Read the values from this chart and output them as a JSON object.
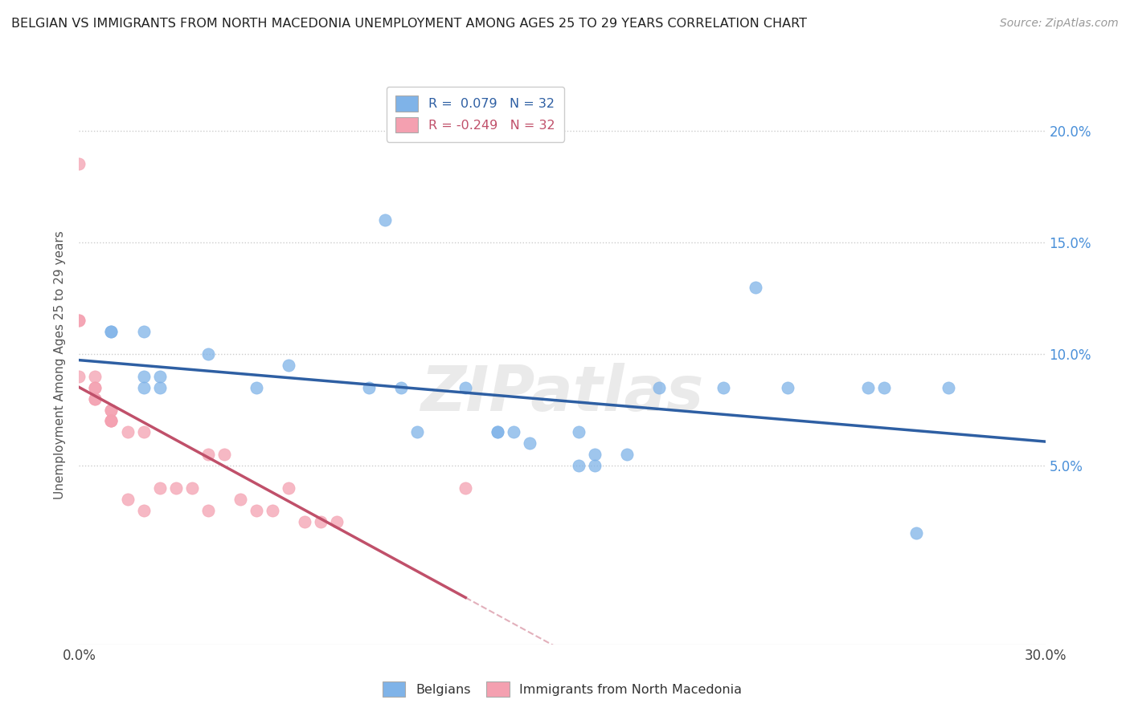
{
  "title": "BELGIAN VS IMMIGRANTS FROM NORTH MACEDONIA UNEMPLOYMENT AMONG AGES 25 TO 29 YEARS CORRELATION CHART",
  "source": "Source: ZipAtlas.com",
  "ylabel": "Unemployment Among Ages 25 to 29 years",
  "xlim": [
    0.0,
    0.3
  ],
  "ylim": [
    -0.03,
    0.22
  ],
  "yticks": [
    0.05,
    0.1,
    0.15,
    0.2
  ],
  "xticks": [
    0.0,
    0.05,
    0.1,
    0.15,
    0.2,
    0.25,
    0.3
  ],
  "xtick_labels": [
    "0.0%",
    "",
    "",
    "",
    "",
    "",
    "30.0%"
  ],
  "right_ytick_labels": [
    "5.0%",
    "10.0%",
    "15.0%",
    "20.0%"
  ],
  "belgian_color": "#7fb3e8",
  "macedonian_color": "#f4a0b0",
  "belgian_R": "0.079",
  "belgian_N": "32",
  "macedonian_R": "-0.249",
  "macedonian_N": "32",
  "legend_label_belgian": "Belgians",
  "legend_label_macedonian": "Immigrants from North Macedonia",
  "belgians_x": [
    0.01,
    0.01,
    0.02,
    0.02,
    0.02,
    0.025,
    0.025,
    0.04,
    0.055,
    0.065,
    0.09,
    0.095,
    0.1,
    0.105,
    0.12,
    0.13,
    0.14,
    0.155,
    0.16,
    0.18,
    0.2,
    0.21,
    0.22,
    0.245,
    0.25,
    0.26,
    0.27,
    0.155,
    0.16,
    0.17,
    0.13,
    0.135
  ],
  "belgians_y": [
    0.11,
    0.11,
    0.11,
    0.09,
    0.085,
    0.09,
    0.085,
    0.1,
    0.085,
    0.095,
    0.085,
    0.16,
    0.085,
    0.065,
    0.085,
    0.065,
    0.06,
    0.05,
    0.05,
    0.085,
    0.085,
    0.13,
    0.085,
    0.085,
    0.085,
    0.02,
    0.085,
    0.065,
    0.055,
    0.055,
    0.065,
    0.065
  ],
  "macedonians_x": [
    0.005,
    0.005,
    0.005,
    0.005,
    0.005,
    0.01,
    0.01,
    0.01,
    0.01,
    0.01,
    0.015,
    0.015,
    0.02,
    0.02,
    0.025,
    0.03,
    0.04,
    0.04,
    0.05,
    0.055,
    0.06,
    0.065,
    0.07,
    0.075,
    0.08,
    0.0,
    0.0,
    0.0,
    0.0,
    0.12,
    0.045,
    0.035
  ],
  "macedonians_y": [
    0.09,
    0.085,
    0.085,
    0.08,
    0.08,
    0.075,
    0.075,
    0.07,
    0.07,
    0.07,
    0.065,
    0.035,
    0.065,
    0.03,
    0.04,
    0.04,
    0.055,
    0.03,
    0.035,
    0.03,
    0.03,
    0.04,
    0.025,
    0.025,
    0.025,
    0.185,
    0.115,
    0.115,
    0.09,
    0.04,
    0.055,
    0.04
  ],
  "watermark": "ZIPatlas",
  "blue_line_color": "#2e5fa3",
  "pink_line_color": "#c0506a",
  "background_color": "#ffffff",
  "grid_color": "#cccccc"
}
